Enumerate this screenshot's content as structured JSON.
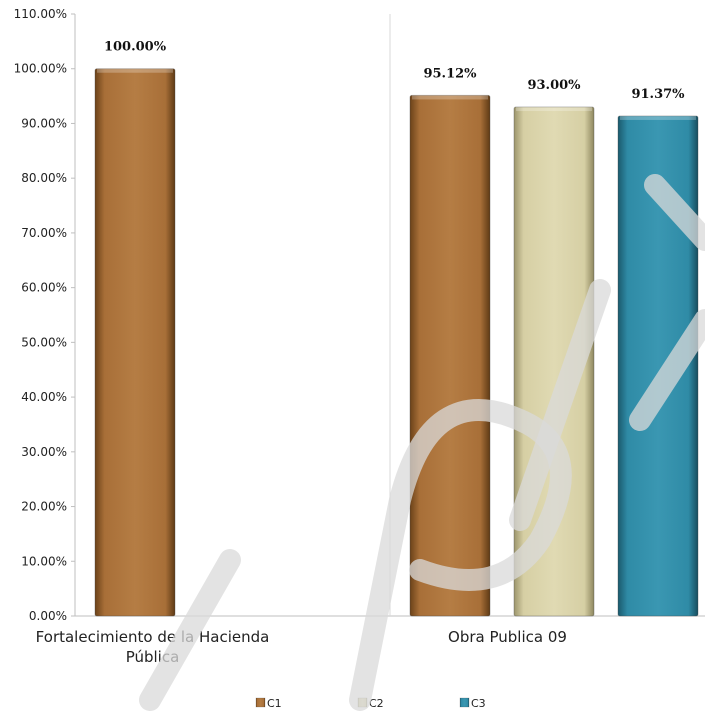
{
  "chart_data": {
    "type": "bar",
    "categories": [
      "Fortalecimiento de la Hacienda Pública",
      "Obra Publica 09"
    ],
    "category_lines": [
      [
        "Fortalecimiento de la Hacienda",
        "Pública"
      ],
      [
        "Obra Publica 09"
      ]
    ],
    "series": [
      {
        "name": "C1",
        "values": [
          100.0,
          95.12
        ],
        "labels": [
          "100.00%",
          "95.12%"
        ]
      },
      {
        "name": "C2",
        "values": [
          null,
          93.0
        ],
        "labels": [
          null,
          "93.00%"
        ]
      },
      {
        "name": "C3",
        "values": [
          null,
          91.37
        ],
        "labels": [
          null,
          "91.37%"
        ]
      }
    ],
    "ylim": [
      0,
      110
    ],
    "y_ticks": [
      "0.00%",
      "10.00%",
      "20.00%",
      "30.00%",
      "40.00%",
      "50.00%",
      "60.00%",
      "70.00%",
      "80.00%",
      "90.00%",
      "100.00%",
      "110.00%"
    ],
    "legend_position": "bottom",
    "grid": false
  },
  "colors": {
    "C1": "#a86f38",
    "C2": "#d6cfa4",
    "C3": "#2f8ba6"
  }
}
